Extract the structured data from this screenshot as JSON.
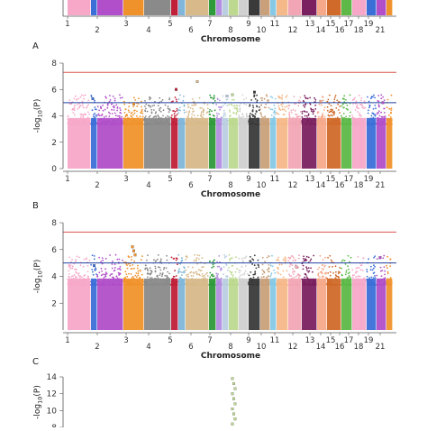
{
  "chart_data": [
    {
      "id": "top-partial",
      "type": "scatter",
      "label": "",
      "xlabel": "Chromosome",
      "ylabel": "",
      "x_ticks": [
        "1",
        "2",
        "3",
        "4",
        "5",
        "6",
        "7",
        "8",
        "9",
        "10",
        "11",
        "12",
        "13",
        "14",
        "15",
        "16",
        "17",
        "18",
        "19",
        "21"
      ],
      "colors": [
        "#f7a8c8",
        "#3b6fd8",
        "#b04fc9",
        "#f0922c",
        "#8a8a8a",
        "#c0203a",
        "#7fb6d9",
        "#d7b98a",
        "#2f9a3a",
        "#b38fe0",
        "#b9cfe0",
        "#bcd98f",
        "#d0d0d0",
        "#3a3a3a",
        "#c9a07a",
        "#86c9e6",
        "#f5b889",
        "#f2a6b5",
        "#7a2060",
        "#f5a98a",
        "#d06a2a",
        "#5db848"
      ],
      "points": []
    },
    {
      "id": "panel-a",
      "type": "scatter",
      "label": "A",
      "xlabel": "Chromosome",
      "ylabel": "-log10(P)",
      "ylim": [
        0,
        8
      ],
      "yticks": [
        "0",
        "2",
        "4",
        "6",
        "8"
      ],
      "x_ticks": [
        "1",
        "2",
        "3",
        "4",
        "5",
        "6",
        "7",
        "8",
        "9",
        "10",
        "11",
        "12",
        "13",
        "14",
        "15",
        "16",
        "17",
        "18",
        "19",
        "21"
      ],
      "thresholds": [
        {
          "value": 7.3,
          "color": "#d9534f"
        },
        {
          "value": 5.0,
          "color": "#1f3f9f"
        }
      ],
      "points": [
        {
          "chr": "2",
          "y": 5.3
        },
        {
          "chr": "6",
          "y": 6.6
        },
        {
          "chr": "5",
          "y": 6.0
        },
        {
          "chr": "9",
          "y": 5.6
        },
        {
          "chr": "10",
          "y": 5.8
        },
        {
          "chr": "8",
          "y": 5.5
        },
        {
          "chr": "15",
          "y": 5.1
        },
        {
          "chr": "3",
          "y": 4.9
        },
        {
          "chr": "21",
          "y": 5.0
        }
      ]
    },
    {
      "id": "panel-b",
      "type": "scatter",
      "label": "B",
      "xlabel": "Chromosome",
      "ylabel": "-log10(P)",
      "ylim": [
        0,
        8
      ],
      "yticks": [
        "2",
        "4",
        "6",
        "8"
      ],
      "x_ticks": [
        "1",
        "2",
        "3",
        "4",
        "5",
        "6",
        "7",
        "8",
        "9",
        "10",
        "11",
        "12",
        "13",
        "14",
        "15",
        "16",
        "17",
        "18",
        "19",
        "21"
      ],
      "thresholds": [
        {
          "value": 7.3,
          "color": "#d9534f"
        },
        {
          "value": 5.0,
          "color": "#1f3f9f"
        }
      ],
      "points": [
        {
          "chr": "3",
          "y": 6.2
        },
        {
          "chr": "3",
          "y": 5.9
        },
        {
          "chr": "3",
          "y": 5.6
        },
        {
          "chr": "21",
          "y": 5.4
        },
        {
          "chr": "2",
          "y": 4.8
        },
        {
          "chr": "13",
          "y": 4.7
        }
      ]
    },
    {
      "id": "panel-c",
      "type": "scatter",
      "label": "C",
      "xlabel": "",
      "ylabel": "-log10(P)",
      "ylim": [
        8,
        14
      ],
      "yticks": [
        "8",
        "10",
        "12",
        "14"
      ],
      "x_ticks": [],
      "points": [
        {
          "chr": "9",
          "y": 13.8
        },
        {
          "chr": "9",
          "y": 13.2
        },
        {
          "chr": "9",
          "y": 12.6
        },
        {
          "chr": "9",
          "y": 12.0
        },
        {
          "chr": "9",
          "y": 11.4
        },
        {
          "chr": "9",
          "y": 10.8
        },
        {
          "chr": "9",
          "y": 10.2
        },
        {
          "chr": "9",
          "y": 9.6
        },
        {
          "chr": "9",
          "y": 9.0
        },
        {
          "chr": "9",
          "y": 8.4
        }
      ]
    }
  ]
}
